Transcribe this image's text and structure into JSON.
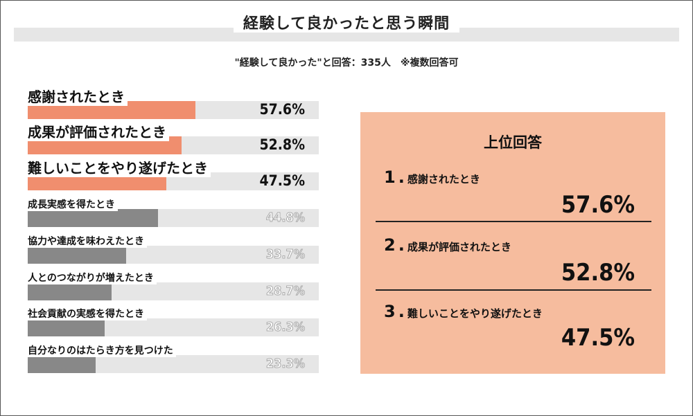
{
  "title": "経験して良かったと思う瞬間",
  "subtitle": "\"経験して良かった\"と回答：335人　※複数回答可",
  "chart_data": {
    "type": "bar",
    "orientation": "horizontal",
    "categories": [
      "感謝されたとき",
      "成果が評価されたとき",
      "難しいことをやり遂げたとき",
      "成長実感を得たとき",
      "協力や達成を味わえたとき",
      "人とのつながりが増えたとき",
      "社会貢献の実感を得たとき",
      "自分なりのはたらき方を見つけた"
    ],
    "values": [
      57.6,
      52.8,
      47.5,
      44.8,
      33.7,
      28.7,
      26.3,
      23.3
    ],
    "value_labels": [
      "57.6%",
      "52.8%",
      "47.5%",
      "44.8%",
      "33.7%",
      "28.7%",
      "26.3%",
      "23.3%"
    ],
    "xlim": [
      0,
      100
    ],
    "highlight_count": 3,
    "colors": {
      "highlight": "#f08e6e",
      "rest": "#888888",
      "track": "#e6e6e6"
    }
  },
  "panel": {
    "title": "上位回答",
    "items": [
      {
        "rank": "1",
        "sep": ".",
        "label": "感謝されたとき",
        "value": "57.6%"
      },
      {
        "rank": "2",
        "sep": ".",
        "label": "成果が評価されたとき",
        "value": "52.8%"
      },
      {
        "rank": "3",
        "sep": ".",
        "label": "難しいことをやり遂げたとき",
        "value": "47.5%"
      }
    ],
    "color": "#f6bc9e"
  }
}
